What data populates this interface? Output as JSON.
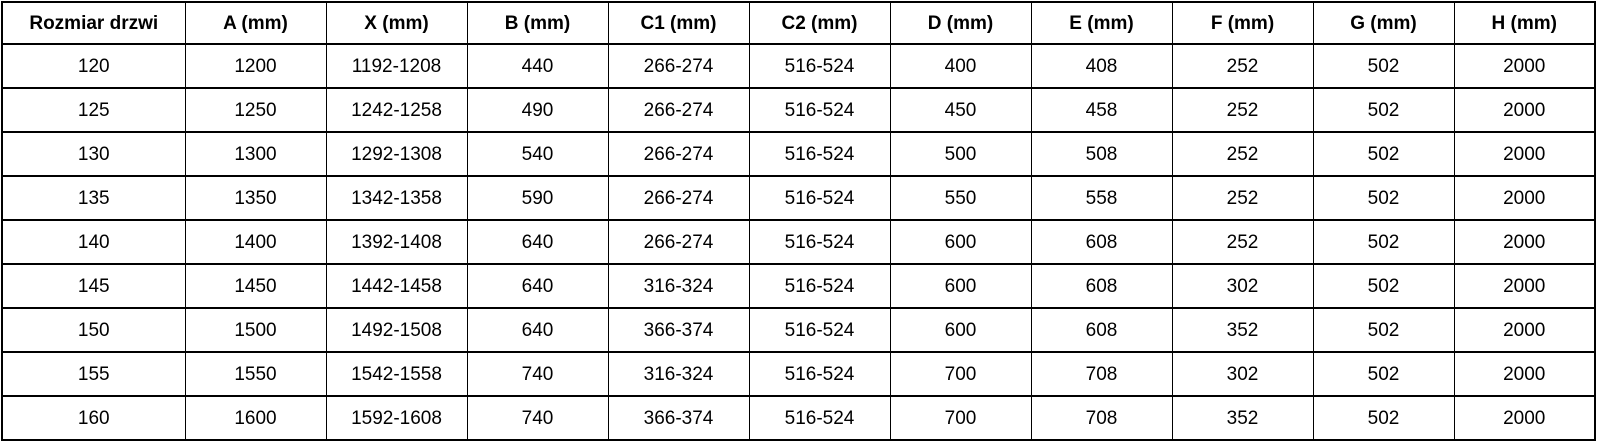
{
  "table": {
    "columns": [
      "Rozmiar drzwi",
      "A (mm)",
      "X (mm)",
      "B (mm)",
      "C1 (mm)",
      "C2 (mm)",
      "D (mm)",
      "E (mm)",
      "F (mm)",
      "G (mm)",
      "H (mm)"
    ],
    "rows": [
      [
        "120",
        "1200",
        "1192-1208",
        "440",
        "266-274",
        "516-524",
        "400",
        "408",
        "252",
        "502",
        "2000"
      ],
      [
        "125",
        "1250",
        "1242-1258",
        "490",
        "266-274",
        "516-524",
        "450",
        "458",
        "252",
        "502",
        "2000"
      ],
      [
        "130",
        "1300",
        "1292-1308",
        "540",
        "266-274",
        "516-524",
        "500",
        "508",
        "252",
        "502",
        "2000"
      ],
      [
        "135",
        "1350",
        "1342-1358",
        "590",
        "266-274",
        "516-524",
        "550",
        "558",
        "252",
        "502",
        "2000"
      ],
      [
        "140",
        "1400",
        "1392-1408",
        "640",
        "266-274",
        "516-524",
        "600",
        "608",
        "252",
        "502",
        "2000"
      ],
      [
        "145",
        "1450",
        "1442-1458",
        "640",
        "316-324",
        "516-524",
        "600",
        "608",
        "302",
        "502",
        "2000"
      ],
      [
        "150",
        "1500",
        "1492-1508",
        "640",
        "366-374",
        "516-524",
        "600",
        "608",
        "352",
        "502",
        "2000"
      ],
      [
        "155",
        "1550",
        "1542-1558",
        "740",
        "316-324",
        "516-524",
        "700",
        "708",
        "302",
        "502",
        "2000"
      ],
      [
        "160",
        "1600",
        "1592-1608",
        "740",
        "366-374",
        "516-524",
        "700",
        "708",
        "352",
        "502",
        "2000"
      ]
    ],
    "colors": {
      "border": "#000000",
      "text": "#000000",
      "background": "#ffffff"
    }
  }
}
